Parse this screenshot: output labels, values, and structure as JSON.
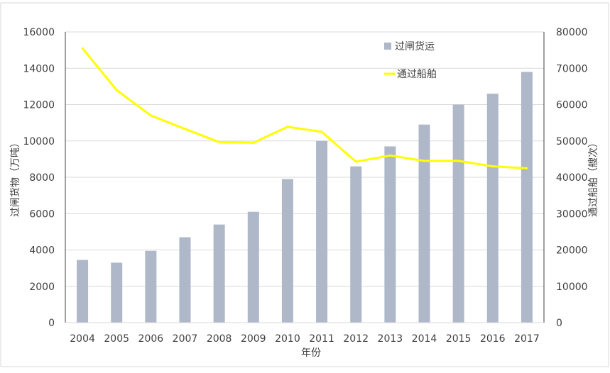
{
  "chart_data": {
    "type": "bar",
    "categories": [
      "2004",
      "2005",
      "2006",
      "2007",
      "2008",
      "2009",
      "2010",
      "2011",
      "2012",
      "2013",
      "2014",
      "2015",
      "2016",
      "2017"
    ],
    "series": [
      {
        "name": "过闸货运",
        "type": "bar",
        "axis": "left",
        "color": "#aeb8c8",
        "values": [
          3450,
          3300,
          3950,
          4700,
          5400,
          6100,
          7900,
          10000,
          8600,
          9700,
          10900,
          12000,
          12600,
          13800
        ]
      },
      {
        "name": "通过船舶",
        "type": "line",
        "axis": "right",
        "color": "#ffff00",
        "values": [
          75500,
          64000,
          57000,
          53300,
          49700,
          49500,
          53900,
          52500,
          44300,
          46000,
          44500,
          44500,
          43000,
          42500
        ]
      }
    ],
    "xlabel": "年份",
    "ylabel": "过闸货物（万吨）",
    "y2label": "通过船舶（艘次）",
    "ylim": [
      0,
      16000
    ],
    "y2lim": [
      0,
      80000
    ],
    "yticks": [
      "0",
      "2000",
      "4000",
      "6000",
      "8000",
      "10000",
      "12000",
      "14000",
      "16000"
    ],
    "y2ticks": [
      "0",
      "10000",
      "20000",
      "30000",
      "40000",
      "50000",
      "60000",
      "70000",
      "80000"
    ],
    "grid": true,
    "legend_position": "top-right"
  }
}
